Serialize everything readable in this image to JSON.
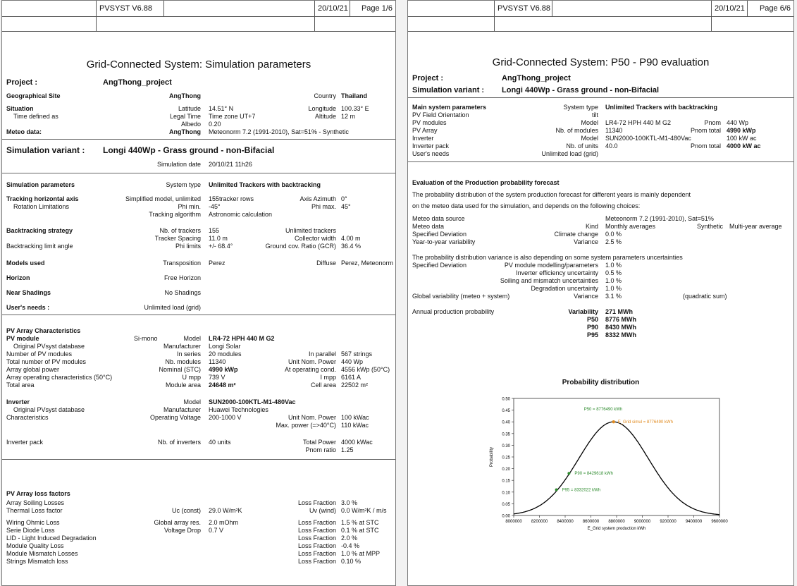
{
  "pages": [
    {
      "software": "PVSYST V6.88",
      "date": "20/10/21",
      "page": "Page 1/6",
      "title": "Grid-Connected System: Simulation parameters"
    },
    {
      "software": "PVSYST V6.88",
      "date": "20/10/21",
      "page": "Page 6/6",
      "title": "Grid-Connected System: P50 - P90 evaluation"
    }
  ],
  "p1": {
    "project_label": "Project :",
    "project_value": "AngThong_project",
    "geo_label": "Geographical Site",
    "geo_site": "AngThong",
    "country_label": "Country",
    "country_value": "Thailand",
    "situation_label": "Situation",
    "lat_label": "Latitude",
    "lat_value": "14.51° N",
    "lon_label": "Longitude",
    "lon_value": "100.33° E",
    "timedef_label": "Time defined as",
    "legal_label": "Legal Time",
    "legal_value": "Time zone UT+7",
    "alt_label": "Altitude",
    "alt_value": "12 m",
    "albedo_label": "Albedo",
    "albedo_value": "0.20",
    "meteo_label": "Meteo data:",
    "meteo_site": "AngThong",
    "meteo_value": "Meteonorm 7.2 (1991-2010), Sat=51% - Synthetic",
    "variant_label": "Simulation variant :",
    "variant_value": "Longi 440Wp - Grass ground - non-Bifacial",
    "simdate_label": "Simulation date",
    "simdate_value": "20/10/21 11h26",
    "simparams_label": "Simulation parameters",
    "systype_label": "System type",
    "systype_value": "Unlimited Trackers with backtracking",
    "tracking_label": "Tracking horizontal axis",
    "tracking_model": "Simplified model, unlimited",
    "tracking_rows": "155tracker rows",
    "azimuth_label": "Axis Azimuth",
    "azimuth_value": "0°",
    "rotation_label": "Rotation Limitations",
    "phimin_label": "Phi min.",
    "phimin_value": "-45°",
    "phimax_label": "Phi max.",
    "phimax_value": "45°",
    "algo_label": "Tracking algorithm",
    "algo_value": "Astronomic calculation",
    "backtrack_label": "Backtracking strategy",
    "ntrackers_label": "Nb. of trackers",
    "ntrackers_value": "155",
    "unlimited_trackers": "Unlimited trackers",
    "spacing_label": "Tracker Spacing",
    "spacing_value": "11.0 m",
    "collector_label": "Collector width",
    "collector_value": "4.00 m",
    "btlimit_label": "Backtracking limit angle",
    "philimits_label": "Phi limits",
    "philimits_value": "+/- 68.4°",
    "gcr_label": "Ground cov. Ratio (GCR)",
    "gcr_value": "36.4 %",
    "models_label": "Models used",
    "transposition_label": "Transposition",
    "transposition_value": "Perez",
    "diffuse_label": "Diffuse",
    "diffuse_value": "Perez, Meteonorm",
    "horizon_label": "Horizon",
    "horizon_value": "Free Horizon",
    "shadings_label": "Near Shadings",
    "shadings_value": "No Shadings",
    "needs_label": "User's needs :",
    "needs_value": "Unlimited load (grid)",
    "pvarray_label": "PV Array Characteristics",
    "pvmodule_label": "PV module",
    "pvmodule_tech": "Si-mono",
    "model_label": "Model",
    "pvmodule_model": "LR4-72 HPH 440 M G2",
    "origdb_label": "Original PVsyst database",
    "manuf_label": "Manufacturer",
    "pvmodule_manuf": "Longi Solar",
    "nbmod_label": "Number of PV modules",
    "inseries_label": "In series",
    "inseries_value": "20 modules",
    "inparallel_label": "In parallel",
    "inparallel_value": "567 strings",
    "totmod_label": "Total number of PV modules",
    "nbmodules_label": "Nb. modules",
    "nbmodules_value": "11340",
    "unitnom_label": "Unit Nom. Power",
    "unitnom_value": "440 Wp",
    "arrpow_label": "Array global power",
    "nominal_label": "Nominal (STC)",
    "nominal_value": "4990 kWp",
    "atop_label": "At operating cond.",
    "atop_value": "4556 kWp (50°C)",
    "arrop_label": "Array operating characteristics (50°C)",
    "umpp_label": "U mpp",
    "umpp_value": "739 V",
    "impp_label": "I mpp",
    "impp_value": "6161 A",
    "totarea_label": "Total area",
    "modarea_label": "Module area",
    "modarea_value": "24648 m²",
    "cellarea_label": "Cell area",
    "cellarea_value": "22502 m²",
    "inverter_label": "Inverter",
    "inv_model": "SUN2000-100KTL-M1-480Vac",
    "inv_manuf": "Huawei Technologies",
    "inv_charac_label": "Characteristics",
    "opvolt_label": "Operating Voltage",
    "opvolt_value": "200-1000 V",
    "inv_unitnom_value": "100 kWac",
    "maxpow_label": "Max. power (=>40°C)",
    "maxpow_value": "110 kWac",
    "invpack_label": "Inverter pack",
    "nbinv_label": "Nb. of inverters",
    "nbinv_value": "40 units",
    "totpow_label": "Total Power",
    "totpow_value": "4000 kWac",
    "pnomratio_label": "Pnom ratio",
    "pnomratio_value": "1.25",
    "loss_title": "PV Array loss factors",
    "loss_frac_label": "Loss Fraction",
    "losses": [
      {
        "name": "Array Soiling Losses",
        "lbl": "",
        "val": "",
        "lbl2": "Loss Fraction",
        "val2": "3.0 %"
      },
      {
        "name": "Thermal Loss factor",
        "lbl": "Uc (const)",
        "val": "29.0 W/m²K",
        "lbl2": "Uv (wind)",
        "val2": "0.0 W/m²K / m/s"
      },
      {
        "name": "Wiring Ohmic Loss",
        "lbl": "Global array res.",
        "val": "2.0 mOhm",
        "lbl2": "Loss Fraction",
        "val2": "1.5 % at STC"
      },
      {
        "name": "Serie Diode Loss",
        "lbl": "Voltage Drop",
        "val": "0.7 V",
        "lbl2": "Loss Fraction",
        "val2": "0.1 % at STC"
      },
      {
        "name": "LID - Light Induced Degradation",
        "lbl": "",
        "val": "",
        "lbl2": "Loss Fraction",
        "val2": "2.0 %"
      },
      {
        "name": "Module Quality Loss",
        "lbl": "",
        "val": "",
        "lbl2": "Loss Fraction",
        "val2": "-0.4 %"
      },
      {
        "name": "Module Mismatch Losses",
        "lbl": "",
        "val": "",
        "lbl2": "Loss Fraction",
        "val2": "1.0 % at MPP"
      },
      {
        "name": "Strings Mismatch loss",
        "lbl": "",
        "val": "",
        "lbl2": "Loss Fraction",
        "val2": "0.10 %"
      }
    ]
  },
  "p2": {
    "project_label": "Project :",
    "project_value": "AngThong_project",
    "variant_label": "Simulation variant :",
    "variant_value": "Longi 440Wp - Grass ground - non-Bifacial",
    "main_label": "Main system parameters",
    "systype_label": "System type",
    "systype_value": "Unlimited Trackers with backtracking",
    "orient_label": "PV Field Orientation",
    "orient_value": "tilt",
    "pvmod_label": "PV modules",
    "model_label": "Model",
    "pvmod_model": "LR4-72 HPH 440 M G2",
    "pnom_label": "Pnom",
    "pnom_value": "440 Wp",
    "pvarray_label": "PV Array",
    "nbmod_label": "Nb. of modules",
    "nbmod_value": "11340",
    "pnomtot_label": "Pnom total",
    "pnomtot_value": "4990 kWp",
    "inv_label": "Inverter",
    "inv_model": "SUN2000-100KTL-M1-480Vac",
    "inv_pnom": "100 kW ac",
    "invpack_label": "Inverter pack",
    "nbunits_label": "Nb. of units",
    "nbunits_value": "40.0",
    "invpack_pnomtot": "4000 kW ac",
    "needs_label": "User's needs",
    "needs_value": "Unlimited load (grid)",
    "eval_title": "Evaluation of the Production probability forecast",
    "para1_line1": "The probability distribution of the system production forecast for different years is mainly dependent",
    "para1_line2": "on the meteo data used for the simulation, and depends on the following choices:",
    "msrc_label": "Meteo data source",
    "msrc_value": "Meteonorm 7.2 (1991-2010), Sat=51%",
    "mdata_label": "Meteo data",
    "kind_label": "Kind",
    "kind_value": "Monthly averages",
    "synthetic": "Synthetic",
    "multiyear": "Multi-year average",
    "specdev_label": "Specified Deviation",
    "climate_label": "Climate change",
    "climate_value": "0.0 %",
    "yty_label": "Year-to-year variability",
    "variance_label": "Variance",
    "yty_value": "2.5 %",
    "para2": "The probability distribution variance is also depending on some system parameters uncertainties",
    "unc_rows": [
      {
        "lbl": "PV module modelling/parameters",
        "val": "1.0 %"
      },
      {
        "lbl": "Inverter efficiency uncertainty",
        "val": "0.5 %"
      },
      {
        "lbl": "Soiling and mismatch uncertainties",
        "val": "1.0 %"
      },
      {
        "lbl": "Degradation uncertainty",
        "val": "1.0 %"
      }
    ],
    "globvar_label": "Global variability (meteo + system)",
    "globvar_value": "3.1 %",
    "quadratic": "(quadratic sum)",
    "annual_label": "Annual production probability",
    "prob": [
      {
        "lbl": "Variability",
        "val": "271 MWh"
      },
      {
        "lbl": "P50",
        "val": "8776 MWh"
      },
      {
        "lbl": "P90",
        "val": "8430 MWh"
      },
      {
        "lbl": "P95",
        "val": "8332 MWh"
      }
    ]
  },
  "chart_data": {
    "type": "line",
    "title": "Probability distribution",
    "xlabel": "E_Grid system production kWh",
    "ylabel": "Probability",
    "xlim": [
      8000000,
      9600000
    ],
    "ylim": [
      0,
      0.5
    ],
    "x_ticks": [
      "8000000",
      "8200000",
      "8400000",
      "8600000",
      "8800000",
      "9000000",
      "9200000",
      "9400000",
      "9600000"
    ],
    "y_ticks": [
      "0.00",
      "0.05",
      "0.10",
      "0.15",
      "0.20",
      "0.25",
      "0.30",
      "0.35",
      "0.40",
      "0.45",
      "0.50"
    ],
    "mean": 8776490,
    "sigma": 271000,
    "peak": 0.4,
    "annotations": [
      {
        "text": "P50 = 8776490 kWh",
        "x": 8776490,
        "y": 0.4,
        "color": "#2e8b2e"
      },
      {
        "text": "E_Grid simul = 8776490 kWh",
        "x": 8776490,
        "y": 0.4,
        "color": "#e08a1e"
      },
      {
        "text": "P90 = 8429618 kWh",
        "x": 8429618,
        "y": 0.18,
        "color": "#2e8b2e"
      },
      {
        "text": "P95 = 8332022 kWh",
        "x": 8332022,
        "y": 0.11,
        "color": "#2e8b2e"
      }
    ],
    "colors": {
      "curve": "#000000",
      "p_points": "#2e8b2e",
      "simul_point": "#e08a1e"
    }
  }
}
